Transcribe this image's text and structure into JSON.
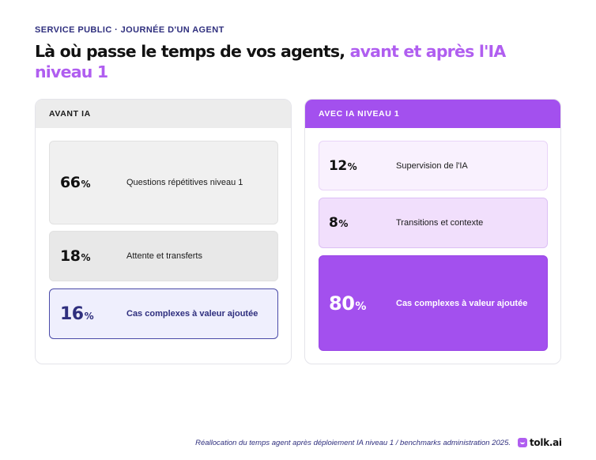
{
  "header": {
    "eyebrow": "SERVICE PUBLIC · JOURNÉE D'UN AGENT",
    "title_part1": "Là où passe le temps de vos agents, ",
    "title_part2": "avant et après l'IA niveau 1"
  },
  "colors": {
    "accent": "#a350ee",
    "navy": "#2f2f7e"
  },
  "before": {
    "label": "AVANT IA",
    "rows": [
      {
        "value": "66",
        "unit": "%",
        "label": "Questions répétitives niveau 1"
      },
      {
        "value": "18",
        "unit": "%",
        "label": "Attente et transferts"
      },
      {
        "value": "16",
        "unit": "%",
        "label": "Cas complexes à valeur ajoutée"
      }
    ]
  },
  "after": {
    "label": "AVEC IA NIVEAU 1",
    "rows": [
      {
        "value": "12",
        "unit": "%",
        "label": "Supervision de l'IA"
      },
      {
        "value": "8",
        "unit": "%",
        "label": "Transitions et contexte"
      },
      {
        "value": "80",
        "unit": "%",
        "label": "Cas complexes à valeur ajoutée"
      }
    ]
  },
  "footer": {
    "note": "Réallocation du temps agent après déploiement IA niveau 1 / benchmarks administration 2025.",
    "brand": "tolk.ai",
    "brand_icon": "chat-bubble-icon"
  }
}
